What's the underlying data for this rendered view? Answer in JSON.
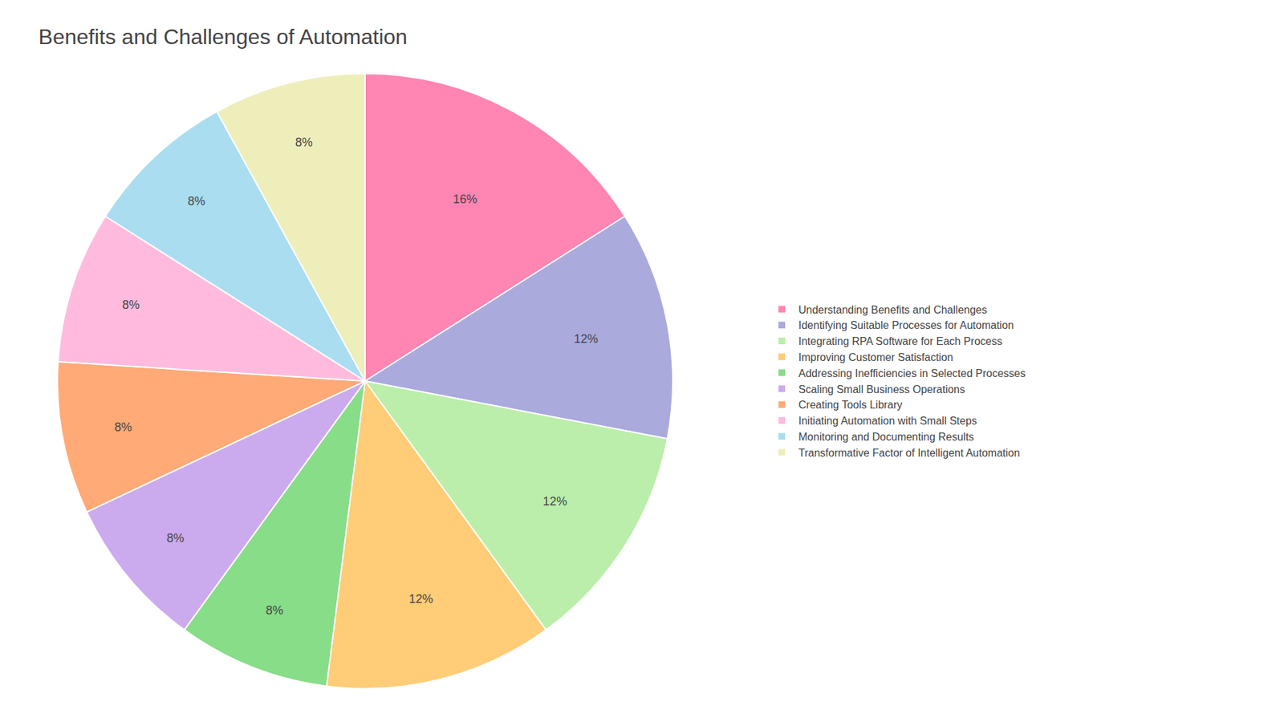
{
  "chart_data": {
    "type": "pie",
    "title": "Benefits and Challenges of Automation",
    "categories": [
      "Understanding Benefits and Challenges",
      "Identifying Suitable Processes for Automation",
      "Integrating RPA Software for Each Process",
      "Improving Customer Satisfaction",
      "Addressing Inefficiencies in Selected Processes",
      "Scaling Small Business Operations",
      "Creating Tools Library",
      "Initiating Automation with Small Steps",
      "Monitoring and Documenting Results",
      "Transformative Factor of Intelligent Automation"
    ],
    "values": [
      16,
      12,
      12,
      12,
      8,
      8,
      8,
      8,
      8,
      8
    ],
    "value_labels": [
      "16%",
      "12%",
      "12%",
      "12%",
      "8%",
      "8%",
      "8%",
      "8%",
      "8%",
      "8%"
    ],
    "colors": [
      "#FF85B3",
      "#AAAADD",
      "#BBEEAA",
      "#FFCC77",
      "#88DD88",
      "#CCAAEE",
      "#FFAA77",
      "#FFBBDD",
      "#AADDF0",
      "#EEEEBB"
    ],
    "data_labels": true,
    "legend": "right"
  }
}
